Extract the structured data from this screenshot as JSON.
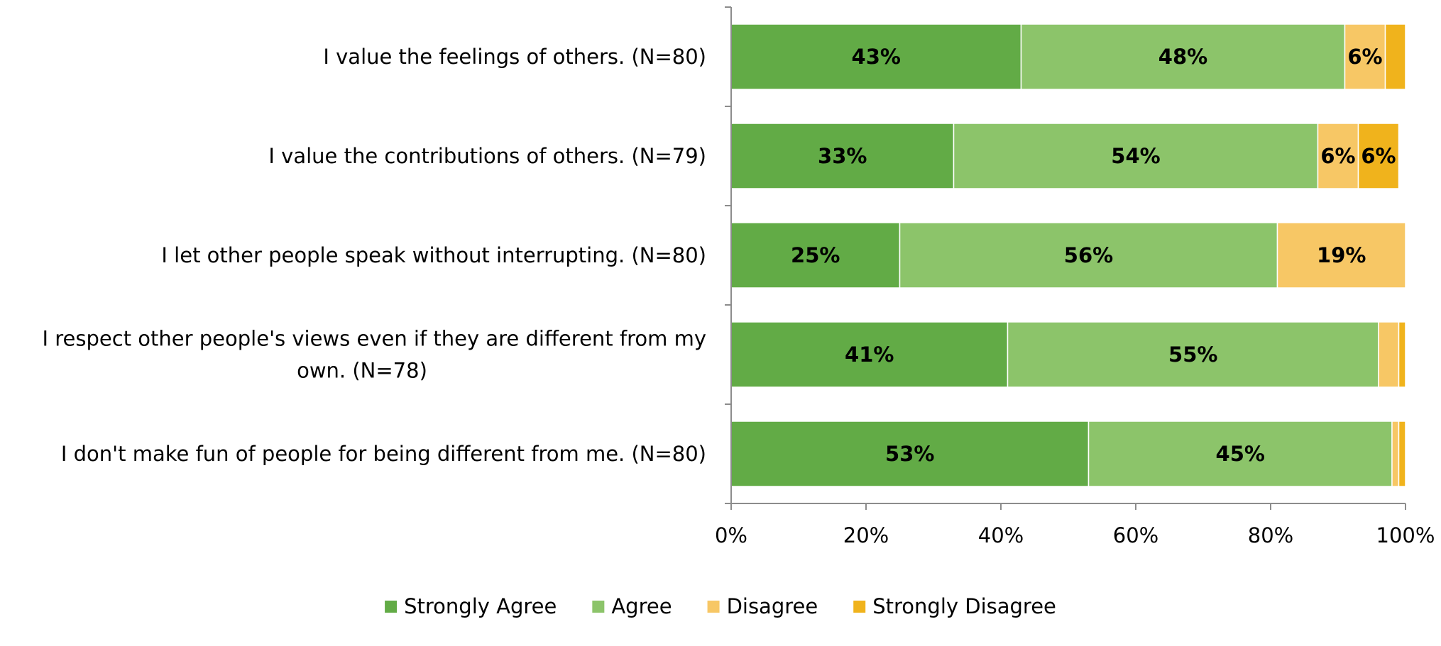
{
  "chart_data": {
    "type": "bar",
    "orientation": "horizontal",
    "stacked": true,
    "categories": [
      "I value the feelings of others. (N=80)",
      "I value the contributions of others. (N=79)",
      "I let other people speak without interrupting. (N=80)",
      "I respect other people's views even if they are different from my own. (N=78)",
      "I don't make fun of people for being different from me. (N=80)"
    ],
    "series": [
      {
        "name": "Strongly Agree",
        "color": "#62AB46",
        "values": [
          43,
          33,
          25,
          41,
          53
        ]
      },
      {
        "name": "Agree",
        "color": "#8CC46A",
        "values": [
          48,
          54,
          56,
          55,
          45
        ]
      },
      {
        "name": "Disagree",
        "color": "#F7C765",
        "values": [
          6,
          6,
          19,
          3,
          1
        ]
      },
      {
        "name": "Strongly Disagree",
        "color": "#F0B31C",
        "values": [
          3,
          6,
          0,
          1,
          1
        ]
      }
    ],
    "data_labels": [
      [
        "43%",
        "48%",
        "6%",
        ""
      ],
      [
        "33%",
        "54%",
        "6%",
        "6%"
      ],
      [
        "25%",
        "56%",
        "19%",
        ""
      ],
      [
        "41%",
        "55%",
        "",
        ""
      ],
      [
        "53%",
        "45%",
        "",
        ""
      ]
    ],
    "xlim": [
      0,
      100
    ],
    "x_ticks": [
      "0%",
      "20%",
      "40%",
      "60%",
      "80%",
      "100%"
    ],
    "legend_position": "bottom",
    "grid": false
  }
}
